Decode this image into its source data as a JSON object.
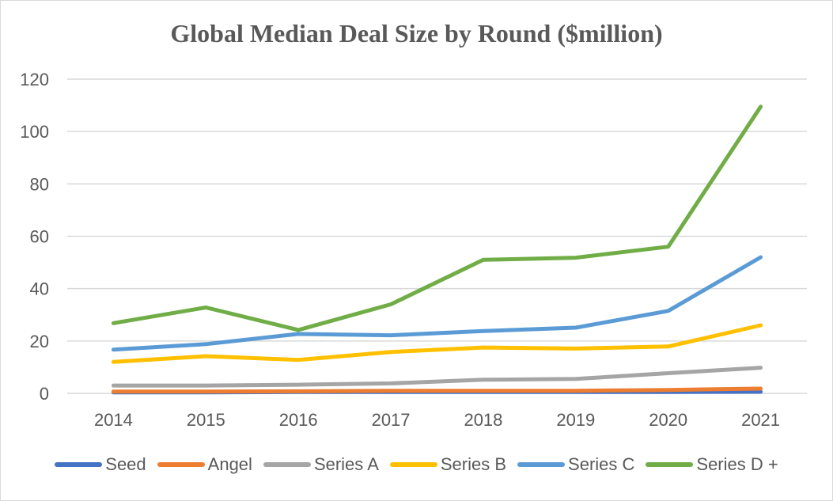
{
  "chart_data": {
    "type": "line",
    "title": "Global Median Deal Size by Round ($million)",
    "xlabel": "",
    "ylabel": "",
    "categories": [
      "2014",
      "2015",
      "2016",
      "2017",
      "2018",
      "2019",
      "2020",
      "2021"
    ],
    "ylim": [
      0,
      120
    ],
    "yticks": [
      0,
      20,
      40,
      60,
      80,
      100,
      120
    ],
    "grid": true,
    "legend_position": "bottom",
    "series": [
      {
        "name": "Seed",
        "color": "#4472c4",
        "values": [
          0.4,
          0.4,
          0.5,
          0.5,
          0.5,
          0.5,
          0.5,
          0.6
        ]
      },
      {
        "name": "Angel",
        "color": "#ed7d31",
        "values": [
          0.7,
          0.7,
          0.8,
          1.0,
          1.0,
          1.0,
          1.3,
          1.8
        ]
      },
      {
        "name": "Series A",
        "color": "#a5a5a5",
        "values": [
          3.0,
          3.0,
          3.3,
          3.8,
          5.2,
          5.5,
          7.7,
          9.8
        ]
      },
      {
        "name": "Series B",
        "color": "#ffc000",
        "values": [
          12.0,
          14.2,
          12.8,
          15.8,
          17.5,
          17.1,
          17.9,
          26.0
        ]
      },
      {
        "name": "Series C",
        "color": "#5b9bd5",
        "values": [
          16.7,
          18.8,
          22.7,
          22.2,
          23.8,
          25.1,
          31.5,
          52.0
        ]
      },
      {
        "name": "Series D +",
        "color": "#70ad47",
        "values": [
          26.8,
          32.8,
          24.2,
          34.0,
          51.0,
          51.8,
          56.0,
          109.5
        ]
      }
    ]
  }
}
